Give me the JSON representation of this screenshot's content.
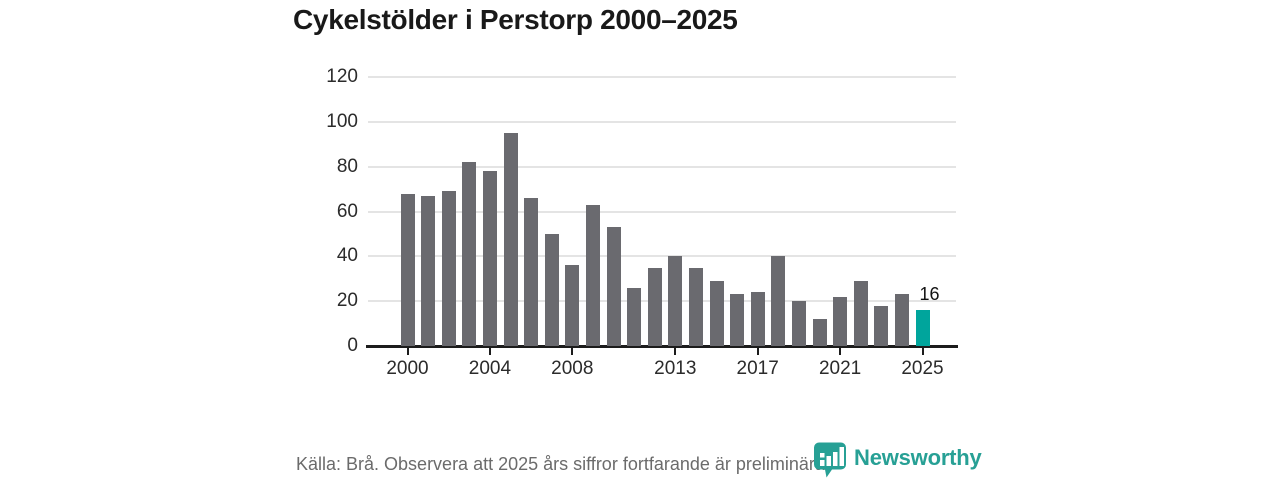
{
  "title": "Cykelstölder i Perstorp 2000–2025",
  "footer": {
    "source_text": "Källa: Brå. Observera att 2025 års siffror fortfarande är preliminära.",
    "logo_text": "Newsworthy"
  },
  "colors": {
    "bar": "#6a6a6f",
    "highlight": "#00a59c",
    "logo_teal": "#27a095",
    "gridline": "#e4e4e4",
    "axis": "#1c1c1c",
    "label_text": "#2b2b2b",
    "footer_text": "#6b6b6b"
  },
  "chart_data": {
    "type": "bar",
    "title": "Cykelstölder i Perstorp 2000–2025",
    "xlabel": "",
    "ylabel": "",
    "x": [
      2000,
      2001,
      2002,
      2003,
      2004,
      2005,
      2006,
      2007,
      2008,
      2009,
      2010,
      2011,
      2012,
      2013,
      2014,
      2015,
      2016,
      2017,
      2018,
      2019,
      2020,
      2021,
      2022,
      2023,
      2024,
      2025
    ],
    "values": [
      68,
      67,
      69,
      82,
      78,
      95,
      66,
      50,
      36,
      63,
      53,
      26,
      35,
      40,
      35,
      29,
      23,
      24,
      40,
      20,
      12,
      22,
      29,
      18,
      23,
      16
    ],
    "highlight_year": 2025,
    "highlight_value_label": "16",
    "x_tick_labels": [
      "2000",
      "2004",
      "2008",
      "2013",
      "2017",
      "2021",
      "2025"
    ],
    "y_ticks": [
      0,
      20,
      40,
      60,
      80,
      100,
      120
    ],
    "ylim": [
      0,
      120
    ],
    "grid": "horizontal-only",
    "legend": "none"
  }
}
